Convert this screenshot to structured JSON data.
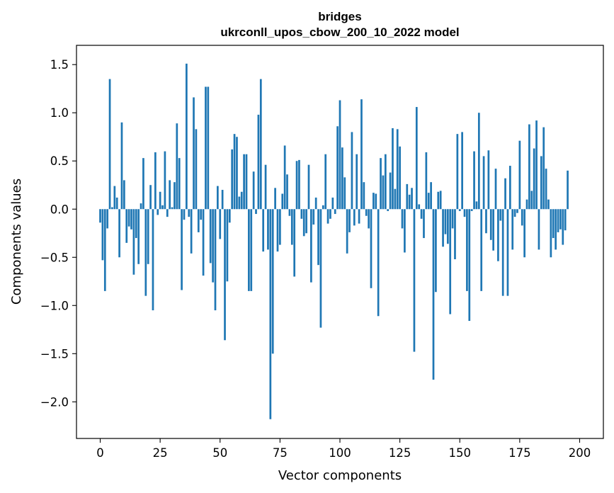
{
  "chart_data": {
    "type": "bar",
    "title": "bridges",
    "subtitle": "ukrconll_upos_cbow_200_10_2022 model",
    "xlabel": "Vector components",
    "ylabel": "Components values",
    "xlim": [
      -9.9,
      209.9
    ],
    "ylim": [
      -2.38,
      1.7
    ],
    "xticks": [
      0,
      25,
      50,
      75,
      100,
      125,
      150,
      175,
      200
    ],
    "yticks": [
      -2.0,
      -1.5,
      -1.0,
      -0.5,
      0.0,
      0.5,
      1.0,
      1.5
    ],
    "ytick_labels": [
      "−2.0",
      "−1.5",
      "−1.0",
      "−0.5",
      "0.0",
      "0.5",
      "1.0",
      "1.5"
    ],
    "bar_color": "#1f77b4",
    "grid": false,
    "legend": "none",
    "values": [
      -0.14,
      -0.53,
      -0.85,
      -0.2,
      1.35,
      0.02,
      0.24,
      0.12,
      -0.5,
      0.9,
      0.3,
      -0.35,
      -0.18,
      -0.21,
      -0.68,
      -0.3,
      -0.57,
      0.06,
      0.53,
      -0.9,
      -0.57,
      0.25,
      -1.05,
      0.59,
      -0.06,
      0.18,
      0.04,
      0.6,
      -0.08,
      0.3,
      0.02,
      0.28,
      0.89,
      0.53,
      -0.84,
      -0.11,
      1.51,
      -0.08,
      -0.46,
      1.16,
      0.83,
      -0.24,
      -0.11,
      -0.69,
      1.27,
      1.27,
      -0.56,
      -0.76,
      -1.05,
      0.24,
      -0.31,
      0.2,
      -1.36,
      -0.75,
      -0.14,
      0.62,
      0.78,
      0.75,
      0.13,
      0.18,
      0.57,
      0.57,
      -0.85,
      -0.85,
      0.39,
      -0.05,
      0.98,
      1.35,
      -0.44,
      0.46,
      -0.42,
      -2.18,
      -1.5,
      0.22,
      -0.44,
      -0.37,
      0.16,
      0.66,
      0.36,
      -0.07,
      -0.37,
      -0.7,
      0.5,
      0.51,
      -0.1,
      -0.28,
      -0.25,
      0.46,
      -0.76,
      -0.16,
      0.12,
      -0.58,
      -1.23,
      0.04,
      0.57,
      -0.15,
      -0.1,
      0.12,
      -0.05,
      0.86,
      1.13,
      0.64,
      0.33,
      -0.46,
      -0.24,
      0.8,
      -0.17,
      0.57,
      -0.15,
      1.14,
      0.28,
      -0.07,
      -0.2,
      -0.82,
      0.17,
      0.16,
      -1.11,
      0.53,
      0.35,
      0.57,
      -0.02,
      0.38,
      0.84,
      0.21,
      0.83,
      0.65,
      -0.2,
      -0.45,
      0.26,
      0.15,
      0.22,
      -1.48,
      1.06,
      0.05,
      -0.1,
      -0.3,
      0.59,
      0.17,
      0.28,
      -1.77,
      -0.86,
      0.18,
      0.19,
      -0.39,
      -0.26,
      -0.36,
      -1.09,
      -0.2,
      -0.52,
      0.78,
      -0.02,
      0.8,
      -0.08,
      -0.85,
      -1.16,
      -0.02,
      0.6,
      0.08,
      1.0,
      -0.85,
      0.55,
      -0.25,
      0.61,
      -0.32,
      -0.43,
      0.42,
      -0.54,
      -0.12,
      -0.9,
      0.32,
      -0.9,
      0.45,
      -0.42,
      -0.08,
      -0.04,
      0.71,
      -0.17,
      -0.5,
      0.1,
      0.88,
      0.19,
      0.63,
      0.92,
      -0.42,
      0.55,
      0.85,
      0.42,
      0.1,
      -0.5,
      -0.3,
      -0.42,
      -0.24,
      -0.21,
      -0.37,
      -0.22,
      0.4
    ]
  }
}
